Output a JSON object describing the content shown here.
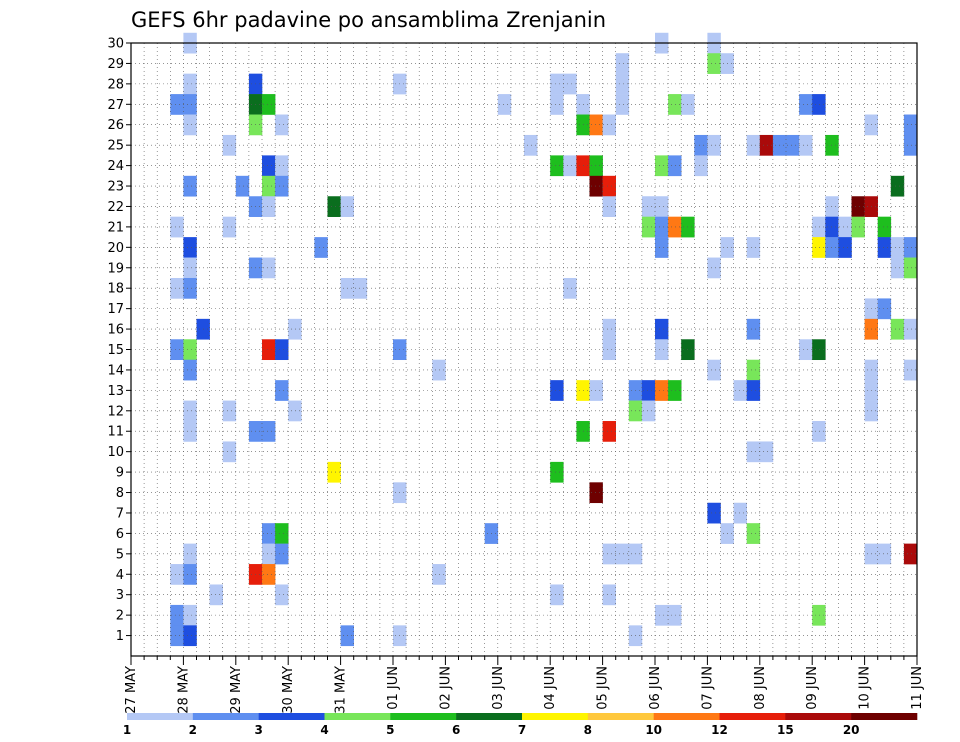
{
  "chart_data": {
    "type": "heatmap",
    "title": "GEFS 6hr padavine po ansamblima Zrenjanin",
    "xlabel": "",
    "ylabel": "",
    "x_tick_labels": [
      "27 MAY",
      "28 MAY",
      "29 MAY",
      "30 MAY",
      "31 MAY",
      "01 JUN",
      "02 JUN",
      "03 JUN",
      "04 JUN",
      "05 JUN",
      "06 JUN",
      "07 JUN",
      "08 JUN",
      "09 JUN",
      "10 JUN",
      "11 JUN"
    ],
    "y_tick_labels": [
      "1",
      "2",
      "3",
      "4",
      "5",
      "6",
      "7",
      "8",
      "9",
      "10",
      "11",
      "12",
      "13",
      "14",
      "15",
      "16",
      "17",
      "18",
      "19",
      "20",
      "21",
      "22",
      "23",
      "24",
      "25",
      "26",
      "27",
      "28",
      "29",
      "30"
    ],
    "x_range_steps": [
      0,
      60
    ],
    "steps_per_day": 4,
    "y_range": [
      0,
      30
    ],
    "grid": true,
    "colorbar": {
      "labels": [
        "1",
        "2",
        "3",
        "4",
        "5",
        "6",
        "7",
        "8",
        "10",
        "12",
        "15",
        "20"
      ],
      "colors": [
        "#b4c8f5",
        "#5f8ff0",
        "#1e4ee0",
        "#78e65a",
        "#1ebe1e",
        "#0a6e1e",
        "#fff500",
        "#ffc83c",
        "#ff7814",
        "#e61e0a",
        "#aa0a0a",
        "#6e0000"
      ]
    },
    "cells_note": "[step, member, color_index]",
    "cells": [
      [
        4,
        30,
        0
      ],
      [
        40,
        30,
        0
      ],
      [
        44,
        30,
        0
      ],
      [
        44,
        29,
        3
      ],
      [
        45,
        29,
        0
      ],
      [
        37,
        29,
        0
      ],
      [
        4,
        28,
        0
      ],
      [
        9,
        28,
        2
      ],
      [
        20,
        28,
        0
      ],
      [
        32,
        28,
        0
      ],
      [
        33,
        28,
        0
      ],
      [
        37,
        28,
        0
      ],
      [
        3,
        27,
        1
      ],
      [
        4,
        27,
        1
      ],
      [
        9,
        27,
        5
      ],
      [
        10,
        27,
        4
      ],
      [
        28,
        27,
        0
      ],
      [
        32,
        27,
        0
      ],
      [
        34,
        27,
        0
      ],
      [
        37,
        27,
        0
      ],
      [
        41,
        27,
        3
      ],
      [
        42,
        27,
        0
      ],
      [
        51,
        27,
        1
      ],
      [
        52,
        27,
        2
      ],
      [
        4,
        26,
        0
      ],
      [
        9,
        26,
        3
      ],
      [
        11,
        26,
        0
      ],
      [
        34,
        26,
        4
      ],
      [
        35,
        26,
        8
      ],
      [
        36,
        26,
        0
      ],
      [
        56,
        26,
        0
      ],
      [
        59,
        26,
        1
      ],
      [
        7,
        25,
        0
      ],
      [
        30,
        25,
        0
      ],
      [
        43,
        25,
        1
      ],
      [
        44,
        25,
        0
      ],
      [
        47,
        25,
        0
      ],
      [
        48,
        25,
        10
      ],
      [
        49,
        25,
        1
      ],
      [
        50,
        25,
        1
      ],
      [
        51,
        25,
        0
      ],
      [
        53,
        25,
        4
      ],
      [
        59,
        25,
        1
      ],
      [
        10,
        24,
        2
      ],
      [
        11,
        24,
        0
      ],
      [
        32,
        24,
        4
      ],
      [
        33,
        24,
        0
      ],
      [
        34,
        24,
        9
      ],
      [
        35,
        24,
        4
      ],
      [
        40,
        24,
        3
      ],
      [
        41,
        24,
        1
      ],
      [
        43,
        24,
        0
      ],
      [
        4,
        23,
        1
      ],
      [
        8,
        23,
        1
      ],
      [
        10,
        23,
        3
      ],
      [
        11,
        23,
        1
      ],
      [
        35,
        23,
        11
      ],
      [
        36,
        23,
        9
      ],
      [
        58,
        23,
        5
      ],
      [
        9,
        22,
        1
      ],
      [
        10,
        22,
        0
      ],
      [
        15,
        22,
        5
      ],
      [
        16,
        22,
        0
      ],
      [
        36,
        22,
        0
      ],
      [
        39,
        22,
        0
      ],
      [
        40,
        22,
        0
      ],
      [
        53,
        22,
        0
      ],
      [
        55,
        22,
        11
      ],
      [
        56,
        22,
        10
      ],
      [
        3,
        21,
        0
      ],
      [
        7,
        21,
        0
      ],
      [
        39,
        21,
        3
      ],
      [
        40,
        21,
        1
      ],
      [
        41,
        21,
        8
      ],
      [
        42,
        21,
        4
      ],
      [
        52,
        21,
        0
      ],
      [
        53,
        21,
        2
      ],
      [
        54,
        21,
        0
      ],
      [
        55,
        21,
        3
      ],
      [
        57,
        21,
        4
      ],
      [
        4,
        20,
        2
      ],
      [
        14,
        20,
        1
      ],
      [
        40,
        20,
        1
      ],
      [
        45,
        20,
        0
      ],
      [
        47,
        20,
        0
      ],
      [
        52,
        20,
        6
      ],
      [
        53,
        20,
        1
      ],
      [
        54,
        20,
        2
      ],
      [
        57,
        20,
        2
      ],
      [
        58,
        20,
        0
      ],
      [
        59,
        20,
        1
      ],
      [
        4,
        19,
        0
      ],
      [
        9,
        19,
        1
      ],
      [
        10,
        19,
        0
      ],
      [
        44,
        19,
        0
      ],
      [
        58,
        19,
        0
      ],
      [
        59,
        19,
        3
      ],
      [
        3,
        18,
        0
      ],
      [
        4,
        18,
        1
      ],
      [
        16,
        18,
        0
      ],
      [
        17,
        18,
        0
      ],
      [
        33,
        18,
        0
      ],
      [
        56,
        17,
        0
      ],
      [
        57,
        17,
        1
      ],
      [
        5,
        16,
        2
      ],
      [
        12,
        16,
        0
      ],
      [
        36,
        16,
        0
      ],
      [
        40,
        16,
        2
      ],
      [
        47,
        16,
        1
      ],
      [
        56,
        16,
        8
      ],
      [
        58,
        16,
        3
      ],
      [
        59,
        16,
        0
      ],
      [
        3,
        15,
        1
      ],
      [
        4,
        15,
        3
      ],
      [
        10,
        15,
        9
      ],
      [
        11,
        15,
        2
      ],
      [
        20,
        15,
        1
      ],
      [
        36,
        15,
        0
      ],
      [
        40,
        15,
        0
      ],
      [
        42,
        15,
        5
      ],
      [
        51,
        15,
        0
      ],
      [
        52,
        15,
        5
      ],
      [
        4,
        14,
        1
      ],
      [
        23,
        14,
        0
      ],
      [
        44,
        14,
        0
      ],
      [
        47,
        14,
        3
      ],
      [
        56,
        14,
        0
      ],
      [
        59,
        14,
        0
      ],
      [
        11,
        13,
        1
      ],
      [
        32,
        13,
        2
      ],
      [
        34,
        13,
        6
      ],
      [
        35,
        13,
        0
      ],
      [
        38,
        13,
        1
      ],
      [
        39,
        13,
        2
      ],
      [
        40,
        13,
        8
      ],
      [
        41,
        13,
        4
      ],
      [
        46,
        13,
        0
      ],
      [
        47,
        13,
        2
      ],
      [
        56,
        13,
        0
      ],
      [
        4,
        12,
        0
      ],
      [
        7,
        12,
        0
      ],
      [
        12,
        12,
        0
      ],
      [
        38,
        12,
        3
      ],
      [
        39,
        12,
        0
      ],
      [
        56,
        12,
        0
      ],
      [
        4,
        11,
        0
      ],
      [
        9,
        11,
        1
      ],
      [
        10,
        11,
        1
      ],
      [
        34,
        11,
        4
      ],
      [
        36,
        11,
        9
      ],
      [
        52,
        11,
        0
      ],
      [
        7,
        10,
        0
      ],
      [
        47,
        10,
        0
      ],
      [
        48,
        10,
        0
      ],
      [
        15,
        9,
        6
      ],
      [
        32,
        9,
        4
      ],
      [
        20,
        8,
        0
      ],
      [
        35,
        8,
        11
      ],
      [
        44,
        7,
        2
      ],
      [
        46,
        7,
        0
      ],
      [
        10,
        6,
        1
      ],
      [
        11,
        6,
        4
      ],
      [
        27,
        6,
        1
      ],
      [
        45,
        6,
        0
      ],
      [
        47,
        6,
        3
      ],
      [
        4,
        5,
        0
      ],
      [
        10,
        5,
        0
      ],
      [
        11,
        5,
        1
      ],
      [
        36,
        5,
        0
      ],
      [
        37,
        5,
        0
      ],
      [
        38,
        5,
        0
      ],
      [
        56,
        5,
        0
      ],
      [
        57,
        5,
        0
      ],
      [
        59,
        5,
        10
      ],
      [
        3,
        4,
        0
      ],
      [
        4,
        4,
        1
      ],
      [
        9,
        4,
        9
      ],
      [
        10,
        4,
        8
      ],
      [
        23,
        4,
        0
      ],
      [
        6,
        3,
        0
      ],
      [
        11,
        3,
        0
      ],
      [
        32,
        3,
        0
      ],
      [
        36,
        3,
        0
      ],
      [
        3,
        2,
        1
      ],
      [
        4,
        2,
        0
      ],
      [
        40,
        2,
        0
      ],
      [
        41,
        2,
        0
      ],
      [
        52,
        2,
        3
      ],
      [
        3,
        1,
        1
      ],
      [
        4,
        1,
        2
      ],
      [
        16,
        1,
        1
      ],
      [
        20,
        1,
        0
      ],
      [
        38,
        1,
        0
      ]
    ]
  }
}
